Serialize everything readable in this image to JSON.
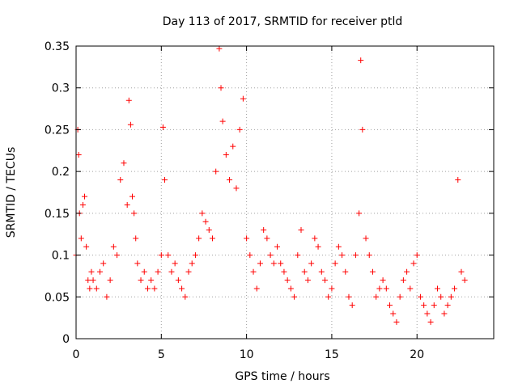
{
  "chart_data": {
    "type": "scatter",
    "title": "Day 113 of 2017, SRMTID for receiver ptld",
    "xlabel": "GPS time / hours",
    "ylabel": "SRMTID / TECUs",
    "xlim": [
      0,
      24.5
    ],
    "ylim": [
      0,
      0.35
    ],
    "xticks": [
      0,
      5,
      10,
      15,
      20
    ],
    "xtick_labels": [
      "0",
      "5",
      "10",
      "15",
      "20"
    ],
    "yticks": [
      0,
      0.05,
      0.1,
      0.15,
      0.2,
      0.25,
      0.3,
      0.35
    ],
    "ytick_labels": [
      "0",
      "0.05",
      "0.1",
      "0.15",
      "0.2",
      "0.25",
      "0.3",
      "0.35"
    ],
    "grid": true,
    "marker": "plus",
    "series": [
      {
        "name": "SRMTID",
        "color": "#ff0000",
        "x": [
          0.0,
          0.1,
          0.15,
          0.2,
          0.3,
          0.4,
          0.5,
          0.6,
          0.7,
          0.8,
          0.9,
          1.0,
          1.2,
          1.4,
          1.6,
          1.8,
          2.0,
          2.2,
          2.4,
          2.6,
          2.8,
          3.0,
          3.1,
          3.2,
          3.3,
          3.4,
          3.5,
          3.6,
          3.8,
          4.0,
          4.2,
          4.4,
          4.6,
          4.8,
          5.0,
          5.1,
          5.2,
          5.4,
          5.6,
          5.8,
          6.0,
          6.2,
          6.4,
          6.6,
          6.8,
          7.0,
          7.2,
          7.4,
          7.6,
          7.8,
          8.0,
          8.2,
          8.4,
          8.5,
          8.6,
          8.8,
          9.0,
          9.2,
          9.4,
          9.6,
          9.8,
          10.0,
          10.2,
          10.4,
          10.6,
          10.8,
          11.0,
          11.2,
          11.4,
          11.6,
          11.8,
          12.0,
          12.2,
          12.4,
          12.6,
          12.8,
          13.0,
          13.2,
          13.4,
          13.6,
          13.8,
          14.0,
          14.2,
          14.4,
          14.6,
          14.8,
          15.0,
          15.2,
          15.4,
          15.6,
          15.8,
          16.0,
          16.2,
          16.4,
          16.6,
          16.7,
          16.8,
          17.0,
          17.2,
          17.4,
          17.6,
          17.8,
          18.0,
          18.2,
          18.4,
          18.6,
          18.8,
          19.0,
          19.2,
          19.4,
          19.6,
          19.8,
          20.0,
          20.2,
          20.4,
          20.6,
          20.8,
          21.0,
          21.2,
          21.4,
          21.6,
          21.8,
          22.0,
          22.2,
          22.4,
          22.6,
          22.8
        ],
        "y": [
          0.1,
          0.25,
          0.22,
          0.15,
          0.12,
          0.16,
          0.17,
          0.11,
          0.07,
          0.06,
          0.08,
          0.07,
          0.06,
          0.08,
          0.09,
          0.05,
          0.07,
          0.11,
          0.1,
          0.19,
          0.21,
          0.16,
          0.285,
          0.256,
          0.17,
          0.15,
          0.12,
          0.09,
          0.07,
          0.08,
          0.06,
          0.07,
          0.06,
          0.08,
          0.1,
          0.253,
          0.19,
          0.1,
          0.08,
          0.09,
          0.07,
          0.06,
          0.05,
          0.08,
          0.09,
          0.1,
          0.12,
          0.15,
          0.14,
          0.13,
          0.12,
          0.2,
          0.347,
          0.3,
          0.26,
          0.22,
          0.19,
          0.23,
          0.18,
          0.25,
          0.287,
          0.12,
          0.1,
          0.08,
          0.06,
          0.09,
          0.13,
          0.12,
          0.1,
          0.09,
          0.11,
          0.09,
          0.08,
          0.07,
          0.06,
          0.05,
          0.1,
          0.13,
          0.08,
          0.07,
          0.09,
          0.12,
          0.11,
          0.08,
          0.07,
          0.05,
          0.06,
          0.09,
          0.11,
          0.1,
          0.08,
          0.05,
          0.04,
          0.1,
          0.15,
          0.333,
          0.25,
          0.12,
          0.1,
          0.08,
          0.05,
          0.06,
          0.07,
          0.06,
          0.04,
          0.03,
          0.02,
          0.05,
          0.07,
          0.08,
          0.06,
          0.09,
          0.1,
          0.05,
          0.04,
          0.03,
          0.02,
          0.04,
          0.06,
          0.05,
          0.03,
          0.04,
          0.05,
          0.06,
          0.19,
          0.08,
          0.07
        ]
      }
    ]
  }
}
